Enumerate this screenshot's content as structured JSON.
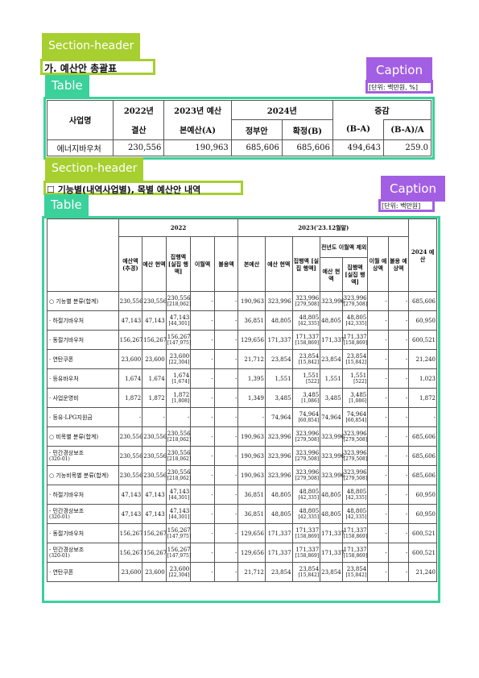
{
  "labels": {
    "section_header": "Section-header",
    "table": "Table",
    "caption": "Caption"
  },
  "section1": {
    "heading": "가. 예산안 총괄표",
    "unit": "[단위: 백만원, %]"
  },
  "table1": {
    "headers": {
      "name": "사업명",
      "y2022": "2022년",
      "y2022_sub": "결산",
      "y2023": "2023년 예산",
      "y2023_sub": "본예산(A)",
      "y2024": "2024년",
      "y2024_gov": "정부안",
      "y2024_final": "확정(B)",
      "change": "증감",
      "change_abs": "(B-A)",
      "change_pct": "(B-A)/A"
    },
    "row": {
      "name": "에너지바우처",
      "y2022": "230,556",
      "y2023": "190,963",
      "gov": "685,606",
      "final": "685,606",
      "diff": "494,643",
      "pct": "259.0"
    }
  },
  "section2": {
    "heading": "☐ 기능별(내역사업별), 목별 예산안 내역",
    "unit": "[단위: 백만원]"
  },
  "table2": {
    "headers": {
      "y2022": "2022",
      "y2023": "2023('23.12월말)",
      "y2024": "2024 예산",
      "budget_revised": "예산액 (추경)",
      "budget_current": "예산 현액",
      "exec": "집행액 [실집 행액]",
      "carry": "이월액",
      "unused": "불용액",
      "main_budget": "본예산",
      "budget_current2": "예산 현액",
      "exec2": "집행액 [실집 행액]",
      "pre_carry": "전년도 이월액 제외",
      "pre_budget": "예산 현액",
      "pre_exec": "집행액 [실집 행액]",
      "carry_exp": "이월 예상액",
      "unused_exp": "불용 예상액"
    },
    "rows": [
      {
        "name": "○ 기능별 분류(합계)",
        "sub": "",
        "a": "230,556",
        "b": "230,556",
        "c": "230,556",
        "c2": "[218,062]",
        "d": "-",
        "e": "-",
        "f": "190,963",
        "g": "323,996",
        "h": "323,996",
        "h2": "[279,508]",
        "i": "323,996",
        "j": "323,996",
        "j2": "[279,508]",
        "k": "-",
        "l": "-",
        "m": "685,606"
      },
      {
        "name": "· 하절기바우처",
        "sub": "",
        "a": "47,143",
        "b": "47,143",
        "c": "47,143",
        "c2": "[44,301]",
        "d": "-",
        "e": "-",
        "f": "36,851",
        "g": "48,805",
        "h": "48,805",
        "h2": "[42,335]",
        "i": "48,805",
        "j": "48,805",
        "j2": "[42,335]",
        "k": "-",
        "l": "-",
        "m": "60,950"
      },
      {
        "name": "· 동절기바우처",
        "sub": "",
        "a": "156,267",
        "b": "156,267",
        "c": "156,267",
        "c2": "[147,975]",
        "d": "-",
        "e": "-",
        "f": "129,656",
        "g": "171,337",
        "h": "171,337",
        "h2": "[158,869]",
        "i": "171,337",
        "j": "171,337",
        "j2": "[158,869]",
        "k": "-",
        "l": "-",
        "m": "600,521"
      },
      {
        "name": "· 연탄쿠폰",
        "sub": "",
        "a": "23,600",
        "b": "23,600",
        "c": "23,600",
        "c2": "[22,304]",
        "d": "-",
        "e": "-",
        "f": "21,712",
        "g": "23,854",
        "h": "23,854",
        "h2": "[15,842]",
        "i": "23,854",
        "j": "23,854",
        "j2": "[15,842]",
        "k": "-",
        "l": "-",
        "m": "21,240"
      },
      {
        "name": "· 등유바우처",
        "sub": "",
        "a": "1,674",
        "b": "1,674",
        "c": "1,674",
        "c2": "[1,674]",
        "d": "-",
        "e": "-",
        "f": "1,395",
        "g": "1,551",
        "h": "1,551",
        "h2": "[522]",
        "i": "1,551",
        "j": "1,551",
        "j2": "[522]",
        "k": "-",
        "l": "-",
        "m": "1,023"
      },
      {
        "name": "· 사업운영비",
        "sub": "",
        "a": "1,872",
        "b": "1,872",
        "c": "1,872",
        "c2": "[1,808]",
        "d": "-",
        "e": "-",
        "f": "1,349",
        "g": "3,485",
        "h": "3,485",
        "h2": "[1,086]",
        "i": "3,485",
        "j": "3,485",
        "j2": "[1,086]",
        "k": "-",
        "l": "-",
        "m": "1,872"
      },
      {
        "name": "· 등유·LPG지원금",
        "sub": "",
        "a": "-",
        "b": "-",
        "c": "-",
        "c2": "",
        "d": "-",
        "e": "-",
        "f": "-",
        "g": "74,964",
        "h": "74,964",
        "h2": "[60,854]",
        "i": "74,964",
        "j": "74,964",
        "j2": "[60,854]",
        "k": "-",
        "l": "-",
        "m": "-"
      },
      {
        "name": "○ 비목별 분류(합계)",
        "sub": "",
        "a": "230,556",
        "b": "230,556",
        "c": "230,556",
        "c2": "[218,062]",
        "d": "-",
        "e": "-",
        "f": "190,963",
        "g": "323,996",
        "h": "323,996",
        "h2": "[279,508]",
        "i": "323,996",
        "j": "323,996",
        "j2": "[279,508]",
        "k": "-",
        "l": "-",
        "m": "685,606"
      },
      {
        "name": "· 민간경상보조",
        "sub": "(320-01)",
        "a": "230,556",
        "b": "230,556",
        "c": "230,556",
        "c2": "[218,062]",
        "d": "-",
        "e": "-",
        "f": "190,963",
        "g": "323,996",
        "h": "323,996",
        "h2": "[279,508]",
        "i": "323,996",
        "j": "323,996",
        "j2": "[279,508]",
        "k": "-",
        "l": "-",
        "m": "685,606"
      },
      {
        "name": "○ 기능비목별 분류(합계)",
        "sub": "",
        "a": "230,556",
        "b": "230,556",
        "c": "230,556",
        "c2": "[218,062]",
        "d": "-",
        "e": "-",
        "f": "190,963",
        "g": "323,996",
        "h": "323,996",
        "h2": "[279,508]",
        "i": "323,996",
        "j": "323,996",
        "j2": "[279,508]",
        "k": "-",
        "l": "-",
        "m": "685,606"
      },
      {
        "name": "· 하절기바우처",
        "sub": "",
        "a": "47,143",
        "b": "47,143",
        "c": "47,143",
        "c2": "[44,301]",
        "d": "-",
        "e": "-",
        "f": "36,851",
        "g": "48,805",
        "h": "48,805",
        "h2": "[42,335]",
        "i": "48,805",
        "j": "48,805",
        "j2": "[42,335]",
        "k": "-",
        "l": "-",
        "m": "60,950"
      },
      {
        "name": "- 민간경상보조",
        "sub": "(320-01)",
        "a": "47,143",
        "b": "47,143",
        "c": "47,143",
        "c2": "[44,301]",
        "d": "-",
        "e": "-",
        "f": "36,851",
        "g": "48,805",
        "h": "48,805",
        "h2": "[42,335]",
        "i": "48,805",
        "j": "48,805",
        "j2": "[42,335]",
        "k": "-",
        "l": "-",
        "m": "60,950"
      },
      {
        "name": "· 동절기바우처",
        "sub": "",
        "a": "156,267",
        "b": "156,267",
        "c": "156,267",
        "c2": "[147,975]",
        "d": "-",
        "e": "-",
        "f": "129,656",
        "g": "171,337",
        "h": "171,337",
        "h2": "[158,869]",
        "i": "171,337",
        "j": "171,337",
        "j2": "[158,869]",
        "k": "-",
        "l": "-",
        "m": "600,521"
      },
      {
        "name": "- 민간경상보조",
        "sub": "(320-01)",
        "a": "156,267",
        "b": "156,267",
        "c": "156,267",
        "c2": "[147,975]",
        "d": "-",
        "e": "-",
        "f": "129,656",
        "g": "171,337",
        "h": "171,337",
        "h2": "[158,869]",
        "i": "171,337",
        "j": "171,337",
        "j2": "[158,869]",
        "k": "-",
        "l": "-",
        "m": "600,521"
      },
      {
        "name": "· 연탄쿠폰",
        "sub": "",
        "a": "23,600",
        "b": "23,600",
        "c": "23,600",
        "c2": "[22,304]",
        "d": "-",
        "e": "-",
        "f": "21,712",
        "g": "23,854",
        "h": "23,854",
        "h2": "[15,842]",
        "i": "23,854",
        "j": "23,854",
        "j2": "[15,842]",
        "k": "-",
        "l": "-",
        "m": "21,240"
      }
    ]
  }
}
